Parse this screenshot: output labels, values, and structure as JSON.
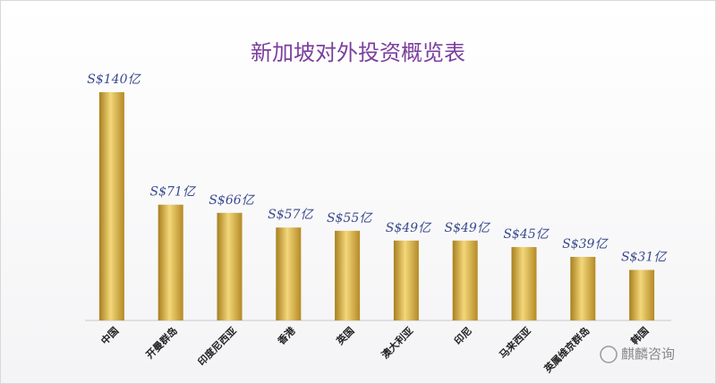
{
  "chart_data": {
    "type": "bar",
    "title": "新加坡对外投资概览表",
    "categories": [
      "中国",
      "开曼群岛",
      "印度尼西亚",
      "香港",
      "英国",
      "澳大利亚",
      "印尼",
      "马来西亚",
      "英属维京群岛",
      "韩国"
    ],
    "values": [
      140,
      71,
      66,
      57,
      55,
      49,
      49,
      45,
      39,
      31
    ],
    "value_labels": [
      "S$140亿",
      "S$71亿",
      "S$66亿",
      "S$57亿",
      "S$55亿",
      "S$49亿",
      "S$49亿",
      "S$45亿",
      "S$39亿",
      "S$31亿"
    ],
    "color": "#d4a93c"
  },
  "watermark": "麒麟咨询"
}
